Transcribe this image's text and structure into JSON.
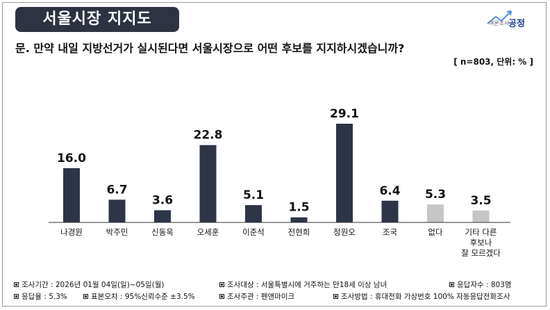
{
  "header": {
    "title": "서울시장 지지도",
    "logo_small": "여론조사",
    "logo_big": "공정"
  },
  "question": "문. 만약 내일 지방선거가 실시된다면 서울시장으로 어떤 후보를 지지하시겠습니까?",
  "unit_note": "[ n=803, 단위: % ]",
  "colors": {
    "main_bar": "#2d3547",
    "other_bar": "#c6c6c6",
    "title_bg": "#2d3340"
  },
  "chart_data": {
    "type": "bar",
    "categories": [
      "나경원",
      "박주민",
      "신동욱",
      "오세훈",
      "이준석",
      "전현희",
      "정원오",
      "조국",
      "없다",
      "기타 다른 후보나 잘 모르겠다"
    ],
    "category_lines": [
      [
        "나경원"
      ],
      [
        "박주민"
      ],
      [
        "신동욱"
      ],
      [
        "오세훈"
      ],
      [
        "이준석"
      ],
      [
        "전현희"
      ],
      [
        "정원오"
      ],
      [
        "조국"
      ],
      [
        "없다"
      ],
      [
        "기타 다른",
        "후보나",
        "잘 모르겠다"
      ]
    ],
    "values": [
      16.0,
      6.7,
      3.6,
      22.8,
      5.1,
      1.5,
      29.1,
      6.4,
      5.3,
      3.5
    ],
    "value_labels": [
      "16.0",
      "6.7",
      "3.6",
      "22.8",
      "5.1",
      "1.5",
      "29.1",
      "6.4",
      "5.3",
      "3.5"
    ],
    "bar_group": [
      "main",
      "main",
      "main",
      "main",
      "main",
      "main",
      "main",
      "main",
      "other",
      "other"
    ],
    "ylim": [
      0,
      30
    ],
    "grid": false,
    "legend": "none",
    "xlabel": "",
    "ylabel": ""
  },
  "footer": {
    "rows": [
      [
        "조사기간 : 2026년 01월 04일(일)~05일(월)",
        "조사대상 : 서울특별시에 거주하는 만18세 이상 남녀",
        "응답자수 : 803명"
      ],
      [
        "응답율 : 5.3%",
        "표본오차 : 95%신뢰수준 ±3.5%",
        "조사주관 : 펜앤마이크",
        "조사방법 : 휴대전화 가상번호 100% 자동응답전화조사"
      ]
    ]
  }
}
